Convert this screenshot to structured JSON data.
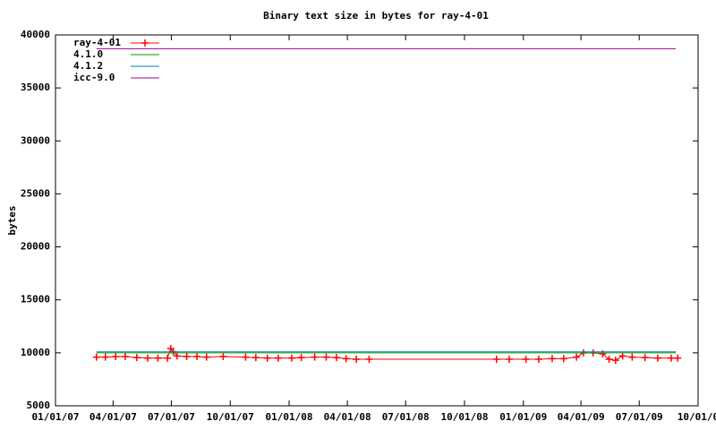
{
  "chart_data": {
    "type": "line",
    "title": "Binary text size in bytes for ray-4-01",
    "y_label": "bytes",
    "xlim": [
      "2007-01-01",
      "2009-10-01"
    ],
    "xticks": [
      {
        "value": "2007-01-01",
        "label": "01/01/07"
      },
      {
        "value": "2007-04-01",
        "label": "04/01/07"
      },
      {
        "value": "2007-07-01",
        "label": "07/01/07"
      },
      {
        "value": "2007-10-01",
        "label": "10/01/07"
      },
      {
        "value": "2008-01-01",
        "label": "01/01/08"
      },
      {
        "value": "2008-04-01",
        "label": "04/01/08"
      },
      {
        "value": "2008-07-01",
        "label": "07/01/08"
      },
      {
        "value": "2008-10-01",
        "label": "10/01/08"
      },
      {
        "value": "2009-01-01",
        "label": "01/01/09"
      },
      {
        "value": "2009-04-01",
        "label": "04/01/09"
      },
      {
        "value": "2009-07-01",
        "label": "07/01/09"
      },
      {
        "value": "2009-10-01",
        "label": "10/01/0"
      }
    ],
    "ylim": [
      5000,
      40000
    ],
    "yticks": [
      5000,
      10000,
      15000,
      20000,
      25000,
      30000,
      35000,
      40000
    ],
    "legend": "top-left",
    "series": [
      {
        "name": "ray-4-01",
        "color": "#ff0000",
        "marker": "+",
        "x": [
          "2007-03-06",
          "2007-03-20",
          "2007-04-05",
          "2007-04-20",
          "2007-05-08",
          "2007-05-25",
          "2007-06-10",
          "2007-06-25",
          "2007-06-30",
          "2007-07-04",
          "2007-07-10",
          "2007-07-25",
          "2007-08-10",
          "2007-08-25",
          "2007-09-20",
          "2007-10-25",
          "2007-11-10",
          "2007-11-28",
          "2007-12-15",
          "2008-01-05",
          "2008-01-20",
          "2008-02-10",
          "2008-02-28",
          "2008-03-15",
          "2008-03-30",
          "2008-04-15",
          "2008-05-05",
          "2008-11-20",
          "2008-12-10",
          "2009-01-05",
          "2009-01-25",
          "2009-02-15",
          "2009-03-05",
          "2009-03-25",
          "2009-04-05",
          "2009-04-20",
          "2009-05-05",
          "2009-05-15",
          "2009-05-25",
          "2009-06-05",
          "2009-06-20",
          "2009-07-10",
          "2009-07-30",
          "2009-08-20",
          "2009-08-30"
        ],
        "values": [
          9600,
          9600,
          9650,
          9650,
          9550,
          9500,
          9500,
          9500,
          10400,
          10100,
          9700,
          9650,
          9650,
          9600,
          9650,
          9600,
          9550,
          9500,
          9500,
          9500,
          9550,
          9600,
          9600,
          9550,
          9450,
          9400,
          9400,
          9400,
          9400,
          9400,
          9400,
          9450,
          9450,
          9600,
          10000,
          10000,
          9900,
          9400,
          9300,
          9700,
          9600,
          9550,
          9500,
          9500,
          9500
        ]
      },
      {
        "name": "4.1.0",
        "color": "#00a000",
        "x": [
          "2007-03-06",
          "2009-08-27"
        ],
        "values": [
          10000,
          10000
        ]
      },
      {
        "name": "4.1.2",
        "color": "#0080c0",
        "x": [
          "2007-03-06",
          "2009-08-27"
        ],
        "values": [
          10100,
          10100
        ]
      },
      {
        "name": "icc-9.0",
        "color": "#a000a0",
        "x": [
          "2007-03-06",
          "2009-08-27"
        ],
        "values": [
          38700,
          38700
        ]
      }
    ]
  }
}
